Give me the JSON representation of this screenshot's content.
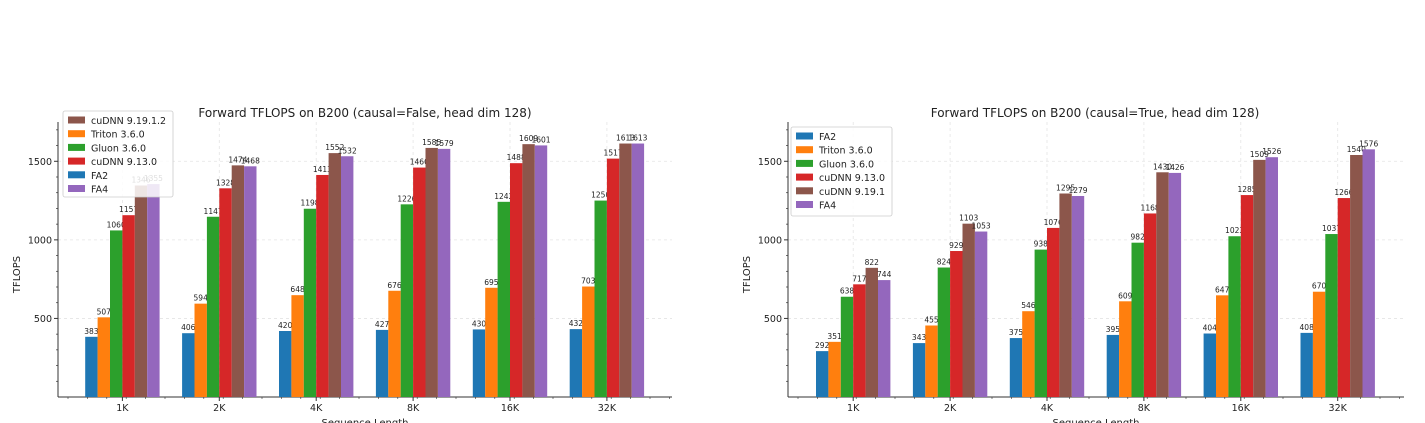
{
  "colors": {
    "FA2": "#1f77b4",
    "Triton 3.6.0": "#ff7f0e",
    "Gluon 3.6.0": "#2ca02c",
    "cuDNN 9.13.0": "#d62728",
    "cuDNN 9.19.1.2": "#8c564b",
    "cuDNN 9.19.1": "#8c564b",
    "FA4": "#9467bd"
  },
  "chart_data": [
    {
      "type": "bar",
      "title": "Forward TFLOPS on B200 (causal=False, head dim 128)",
      "xlabel": "Sequence Length",
      "ylabel": "TFLOPS",
      "ylim": [
        0,
        1750
      ],
      "yticks": [
        500,
        1000,
        1500
      ],
      "grid": true,
      "legend_position": "top-left",
      "categories": [
        "1K",
        "2K",
        "4K",
        "8K",
        "16K",
        "32K"
      ],
      "series": [
        {
          "name": "FA2",
          "values": [
            383,
            406,
            420,
            427,
            430,
            432
          ]
        },
        {
          "name": "Triton 3.6.0",
          "values": [
            507,
            594,
            648,
            676,
            695,
            703
          ]
        },
        {
          "name": "Gluon 3.6.0",
          "values": [
            1060,
            1147,
            1198,
            1226,
            1242,
            1250
          ]
        },
        {
          "name": "cuDNN 9.13.0",
          "values": [
            1157,
            1328,
            1413,
            1460,
            1488,
            1517
          ]
        },
        {
          "name": "cuDNN 9.19.1.2",
          "values": [
            1346,
            1474,
            1552,
            1585,
            1609,
            1613
          ]
        },
        {
          "name": "FA4",
          "values": [
            1355,
            1468,
            1532,
            1579,
            1601,
            1613
          ]
        }
      ],
      "legend_order": [
        "cuDNN 9.19.1.2",
        "Triton 3.6.0",
        "Gluon 3.6.0",
        "cuDNN 9.13.0",
        "FA2",
        "FA4"
      ]
    },
    {
      "type": "bar",
      "title": "Forward TFLOPS on B200 (causal=True, head dim 128)",
      "xlabel": "Sequence Length",
      "ylabel": "TFLOPS",
      "ylim": [
        0,
        1750
      ],
      "yticks": [
        500,
        1000,
        1500
      ],
      "grid": true,
      "legend_position": "top-left",
      "categories": [
        "1K",
        "2K",
        "4K",
        "8K",
        "16K",
        "32K"
      ],
      "series": [
        {
          "name": "FA2",
          "values": [
            292,
            343,
            375,
            395,
            404,
            408
          ]
        },
        {
          "name": "Triton 3.6.0",
          "values": [
            351,
            455,
            546,
            609,
            647,
            670
          ]
        },
        {
          "name": "Gluon 3.6.0",
          "values": [
            638,
            824,
            938,
            982,
            1023,
            1037
          ]
        },
        {
          "name": "cuDNN 9.13.0",
          "values": [
            717,
            929,
            1076,
            1168,
            1285,
            1266
          ]
        },
        {
          "name": "cuDNN 9.19.1",
          "values": [
            822,
            1103,
            1295,
            1430,
            1509,
            1540
          ]
        },
        {
          "name": "FA4",
          "values": [
            744,
            1053,
            1279,
            1426,
            1526,
            1576
          ]
        }
      ],
      "legend_order": [
        "FA2",
        "Triton 3.6.0",
        "Gluon 3.6.0",
        "cuDNN 9.13.0",
        "cuDNN 9.19.1",
        "FA4"
      ]
    }
  ]
}
